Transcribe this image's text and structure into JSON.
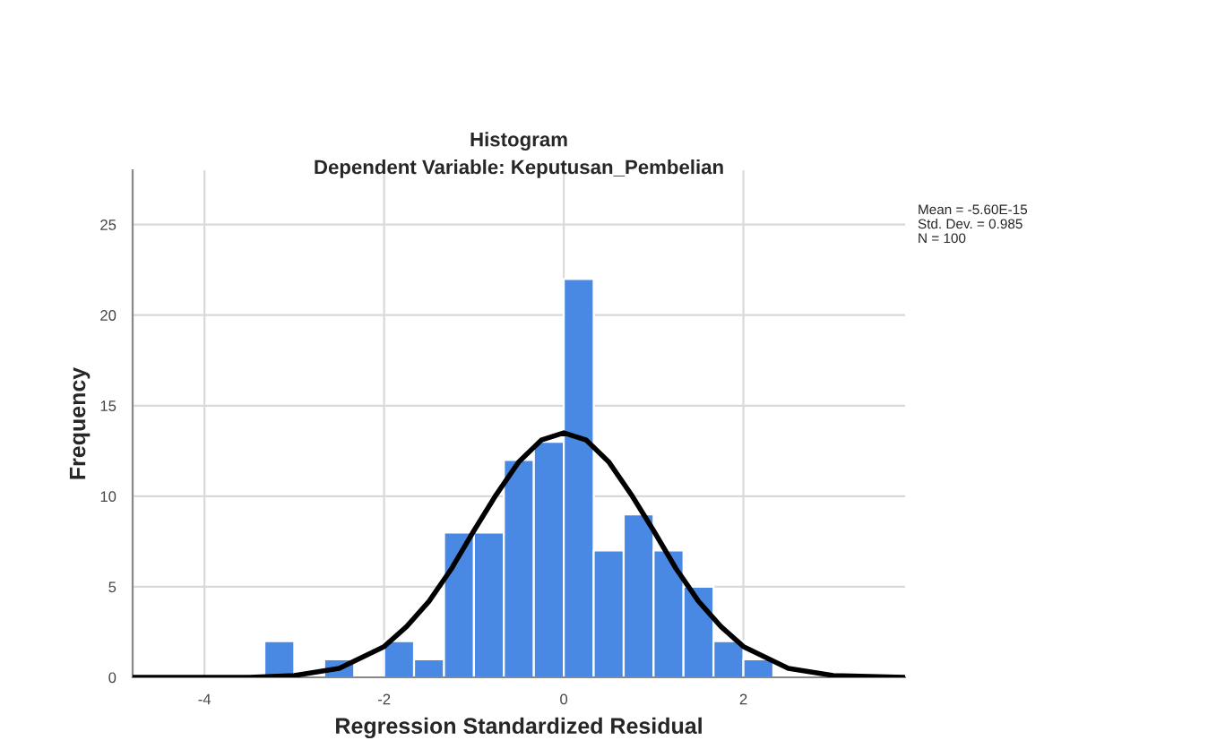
{
  "chart_data": {
    "type": "histogram",
    "title": "Histogram",
    "subtitle": "Dependent Variable: Keputusan_Pembelian",
    "xlabel": "Regression Standardized Residual",
    "ylabel": "Frequency",
    "bins": [
      -3.333,
      -3,
      -2.667,
      -2.333,
      -2,
      -1.667,
      -1.333,
      -1,
      -0.667,
      -0.333,
      0,
      0.333,
      0.667,
      1,
      1.333,
      1.667,
      2,
      2.333
    ],
    "values": [
      2,
      0,
      1,
      0,
      2,
      1,
      8,
      8,
      12,
      13,
      22,
      7,
      9,
      7,
      5,
      2,
      1
    ],
    "color": "#4a89e3",
    "series": [
      {
        "type": "line",
        "color": "#000000",
        "x": [
          -4.8,
          -4,
          -3.5,
          -3,
          -2.5,
          -2,
          -1.75,
          -1.5,
          -1.25,
          -1,
          -0.75,
          -0.5,
          -0.25,
          0,
          0.25,
          0.5,
          0.75,
          1,
          1.25,
          1.5,
          1.75,
          2,
          2.5,
          3,
          3.8
        ],
        "values": [
          0,
          0,
          0,
          0.1,
          0.5,
          1.7,
          2.8,
          4.2,
          6.0,
          8.1,
          10.1,
          11.9,
          13.1,
          13.5,
          13.1,
          11.9,
          10.1,
          8.1,
          6.0,
          4.2,
          2.8,
          1.7,
          0.5,
          0.1,
          0
        ]
      }
    ],
    "xlim": [
      -4.8,
      3.8
    ],
    "ylim": [
      0,
      28
    ],
    "xticks": [
      -4,
      -2,
      0,
      2
    ],
    "yticks": [
      0,
      5,
      10,
      15,
      20,
      25
    ],
    "grid": true,
    "annotations": [
      "Mean = -5.60E-15",
      "Std. Dev. = 0.985",
      "N = 100"
    ]
  }
}
